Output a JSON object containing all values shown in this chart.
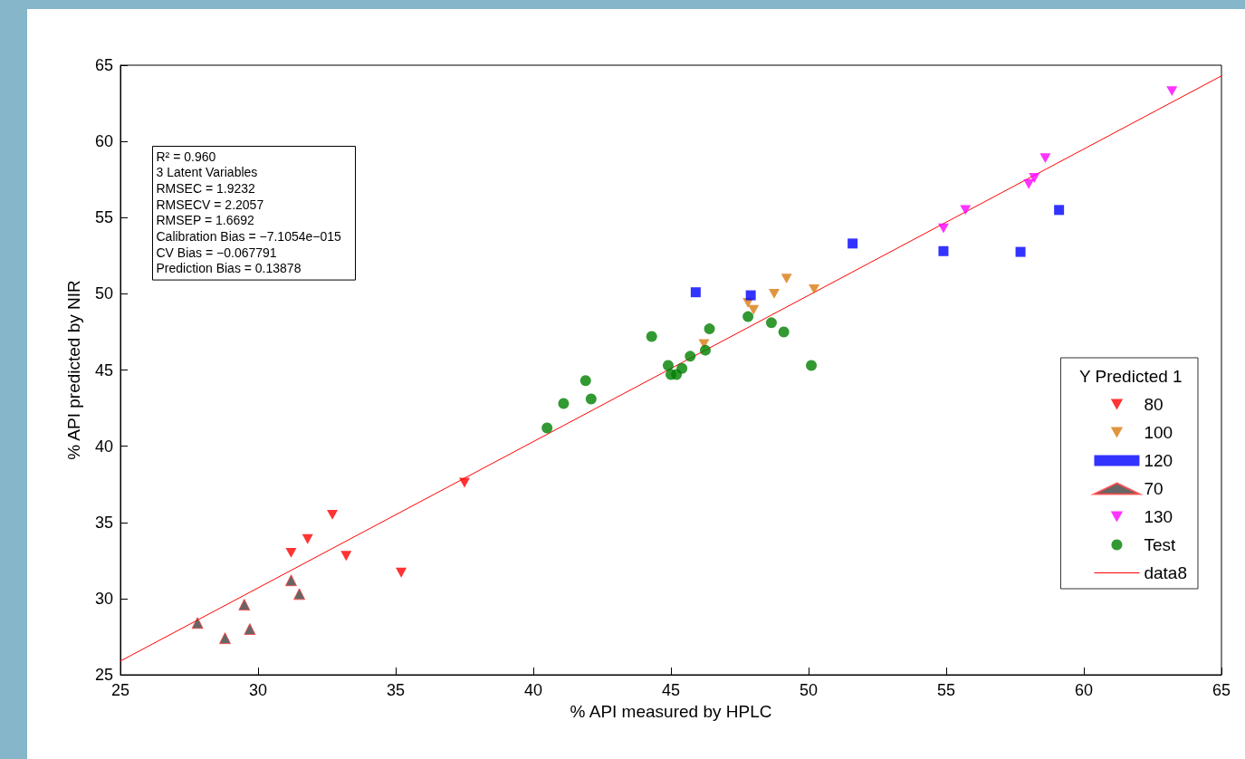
{
  "chart_data": {
    "type": "scatter",
    "xlabel": "% API measured by HPLC",
    "ylabel": "% API predicted by NIR",
    "legend_title": "Y Predicted 1",
    "xlim": [
      25,
      65
    ],
    "xticks": [
      25,
      30,
      35,
      40,
      45,
      50,
      55,
      60,
      65
    ],
    "ylim": [
      25,
      65
    ],
    "yticks": [
      25,
      30,
      35,
      40,
      45,
      50,
      55,
      60,
      65
    ],
    "grid": false,
    "legend": "right",
    "annotations": [
      "R² = 0.960",
      "3 Latent Variables",
      "RMSEC = 1.9232",
      "RMSECV = 2.2057",
      "RMSEP = 1.6692",
      "Calibration Bias = −7.1054e−015",
      "CV Bias = −0.067791",
      "Prediction Bias = 0.13878"
    ],
    "series": [
      {
        "name": "80",
        "color": "#ff0000",
        "marker": "triangle-down",
        "x": [
          31.2,
          31.8,
          32.7,
          33.2,
          35.2,
          37.5
        ],
        "values": [
          33.0,
          33.9,
          35.5,
          32.8,
          31.7,
          37.6
        ]
      },
      {
        "name": "100",
        "color": "#d97a0f",
        "marker": "triangle-down",
        "x": [
          46.2,
          47.8,
          48.0,
          48.75,
          49.2,
          50.2
        ],
        "values": [
          46.7,
          49.4,
          48.95,
          50.0,
          51.0,
          50.3
        ]
      },
      {
        "name": "120",
        "color": "#0000ff",
        "marker": "square",
        "x": [
          45.9,
          47.9,
          51.6,
          54.9,
          57.7,
          59.1
        ],
        "values": [
          50.1,
          49.9,
          53.3,
          52.8,
          52.75,
          55.5
        ]
      },
      {
        "name": "70",
        "color": "#404040",
        "marker": "triangle",
        "x": [
          27.8,
          28.8,
          29.5,
          29.7,
          31.2,
          31.5
        ],
        "values": [
          28.4,
          27.4,
          29.6,
          28.0,
          31.2,
          30.3
        ]
      },
      {
        "name": "130",
        "color": "#ff00ff",
        "marker": "triangle-down",
        "x": [
          54.9,
          55.7,
          58.0,
          58.2,
          58.6,
          63.2
        ],
        "values": [
          54.3,
          55.5,
          57.2,
          57.6,
          58.9,
          63.3
        ]
      },
      {
        "name": "Test",
        "color": "#007f00",
        "marker": "circle",
        "x": [
          40.5,
          41.1,
          41.9,
          42.1,
          44.3,
          44.9,
          45.0,
          45.2,
          45.4,
          45.7,
          46.25,
          46.4,
          47.8,
          48.65,
          49.1,
          50.1
        ],
        "values": [
          41.2,
          42.8,
          44.3,
          43.1,
          47.2,
          45.3,
          44.7,
          44.7,
          45.1,
          45.9,
          46.3,
          47.7,
          48.5,
          48.1,
          47.5,
          45.3
        ]
      },
      {
        "name": "data8",
        "color": "#ff0000",
        "type": "line",
        "marker": "none",
        "line_style": "solid",
        "x": [
          25,
          65
        ],
        "values": [
          25.9,
          64.3
        ]
      }
    ]
  }
}
